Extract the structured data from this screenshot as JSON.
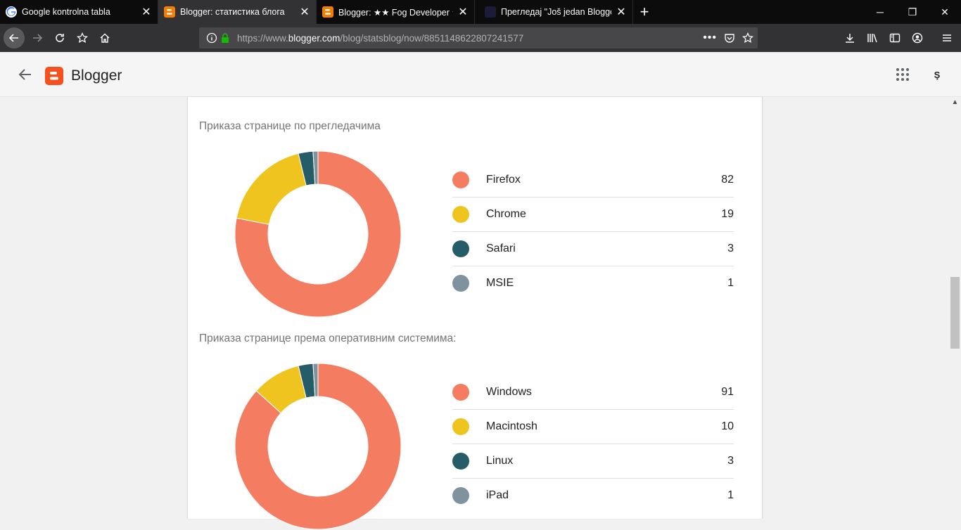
{
  "browser": {
    "tabs": [
      {
        "title": "Google kontrolna tabla",
        "icon": "google-icon",
        "active": false
      },
      {
        "title": "Blogger: статистика блога",
        "icon": "blogger-icon",
        "active": true
      },
      {
        "title": "Blogger: ★★ Fog Developer ★★",
        "icon": "blogger-icon",
        "active": false
      },
      {
        "title": "Прегледај \"Još jedan Blogger blog\"",
        "icon": "blogger-dark-icon",
        "active": false
      }
    ],
    "url": {
      "prefix": "https://www.",
      "host": "blogger.com",
      "path": "/blog/statsblog/now/8851148622807241577"
    }
  },
  "app": {
    "title": "Blogger",
    "avatar_letter": "Ş"
  },
  "colors": {
    "series_1": "#f47c60",
    "series_2": "#f0c41e",
    "series_3": "#255c67",
    "series_4": "#7f939e"
  },
  "chart_data": [
    {
      "type": "pie",
      "style": "donut",
      "title": "Приказа странице по прегледачима",
      "categories": [
        "Firefox",
        "Chrome",
        "Safari",
        "MSIE"
      ],
      "values": [
        82,
        19,
        3,
        1
      ]
    },
    {
      "type": "pie",
      "style": "donut",
      "title": "Приказа странице према оперативним системима:",
      "categories": [
        "Windows",
        "Macintosh",
        "Linux",
        "iPad"
      ],
      "values": [
        91,
        10,
        3,
        1
      ]
    }
  ]
}
